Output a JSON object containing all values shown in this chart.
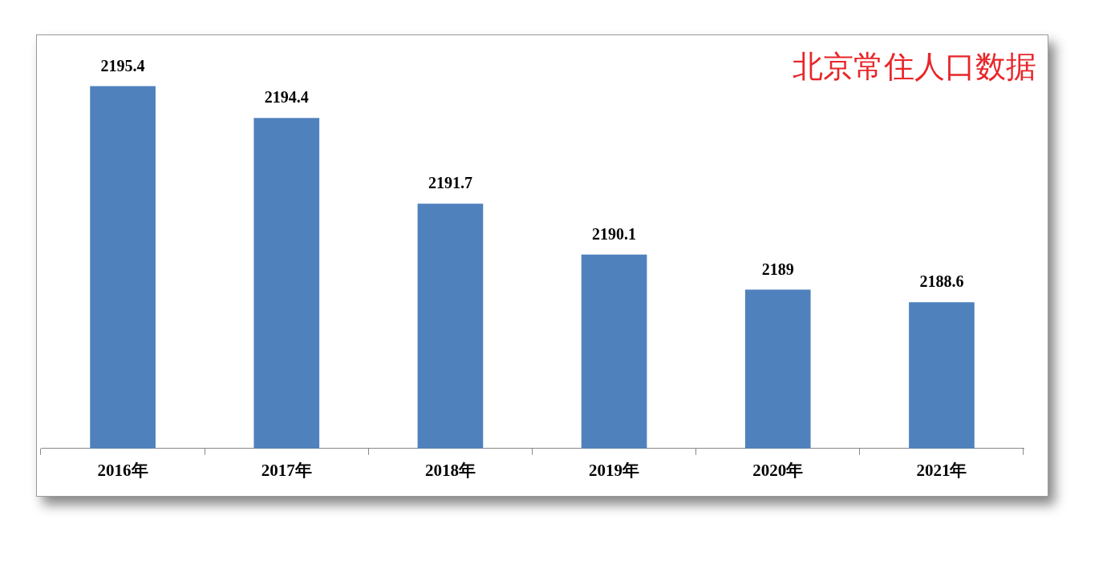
{
  "chart_data": {
    "type": "bar",
    "title": "北京常住人口数据",
    "categories": [
      "2016年",
      "2017年",
      "2018年",
      "2019年",
      "2020年",
      "2021年"
    ],
    "values": [
      2195.4,
      2194.4,
      2191.7,
      2190.1,
      2189,
      2188.6
    ],
    "color": "#4f81bd",
    "ylim": [
      2184,
      2197
    ],
    "tick_labels": "x",
    "data_labels": true,
    "grid": false,
    "legend": false
  }
}
